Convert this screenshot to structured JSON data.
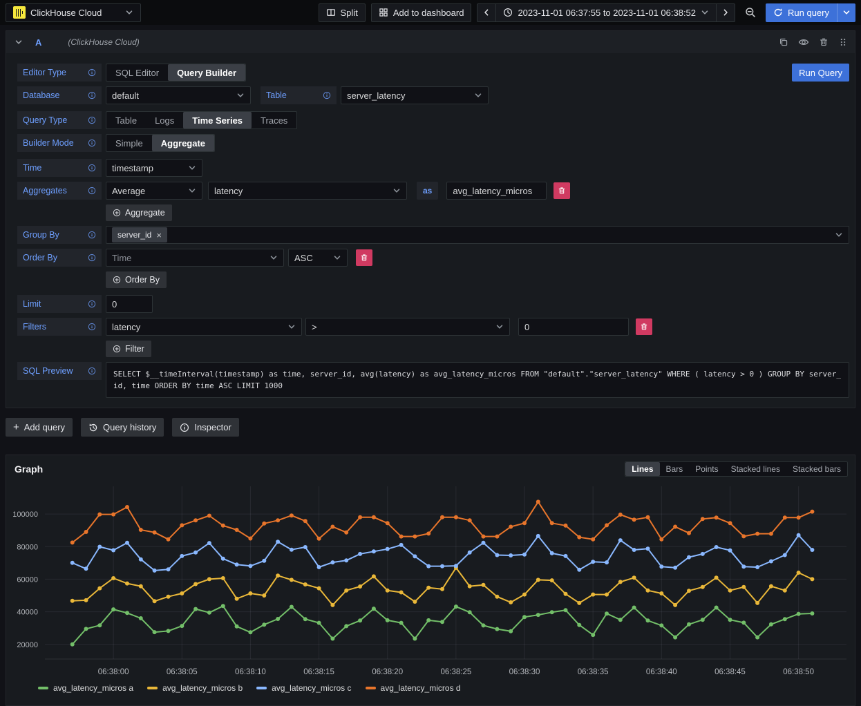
{
  "icons": {
    "plus": "+",
    "close": "×"
  },
  "topbar": {
    "datasource_name": "ClickHouse Cloud",
    "split": "Split",
    "add_to_dashboard": "Add to dashboard",
    "time_range": "2023-11-01 06:37:55 to 2023-11-01 06:38:52",
    "run_query": "Run query"
  },
  "panel": {
    "ref_id": "A",
    "datasource_hint": "(ClickHouse Cloud)",
    "run_query": "Run Query",
    "editor_type": {
      "label": "Editor Type",
      "options": [
        "SQL Editor",
        "Query Builder"
      ],
      "selected": "Query Builder"
    },
    "database": {
      "label": "Database",
      "value": "default"
    },
    "table": {
      "label": "Table",
      "value": "server_latency"
    },
    "query_type": {
      "label": "Query Type",
      "options": [
        "Table",
        "Logs",
        "Time Series",
        "Traces"
      ],
      "selected": "Time Series"
    },
    "builder_mode": {
      "label": "Builder Mode",
      "options": [
        "Simple",
        "Aggregate"
      ],
      "selected": "Aggregate"
    },
    "time": {
      "label": "Time",
      "value": "timestamp"
    },
    "aggregates": {
      "label": "Aggregates",
      "function": "Average",
      "column": "latency",
      "as_label": "as",
      "alias": "avg_latency_micros",
      "add_button": "Aggregate"
    },
    "group_by": {
      "label": "Group By",
      "tags": [
        "server_id"
      ]
    },
    "order_by": {
      "label": "Order By",
      "field": "Time",
      "direction": "ASC",
      "add_button": "Order By"
    },
    "limit": {
      "label": "Limit",
      "value": "0"
    },
    "filters": {
      "label": "Filters",
      "column": "latency",
      "operator": ">",
      "value": "0",
      "add_button": "Filter"
    },
    "sql_preview": {
      "label": "SQL Preview",
      "sql": "SELECT $__timeInterval(timestamp) as time, server_id, avg(latency) as avg_latency_micros FROM \"default\".\"server_latency\" WHERE ( latency > 0 ) GROUP BY server_id, time ORDER BY time ASC LIMIT 1000"
    }
  },
  "footer_buttons": {
    "add_query": "Add query",
    "query_history": "Query history",
    "inspector": "Inspector"
  },
  "graph": {
    "title": "Graph",
    "view_modes": [
      "Lines",
      "Bars",
      "Points",
      "Stacked lines",
      "Stacked bars"
    ],
    "active_mode": "Lines"
  },
  "colors": {
    "accent_blue": "#3D71D9",
    "label_blue": "#6E9FFF",
    "destructive_red": "#D03A61",
    "clickhouse_yellow": "#F5E73D",
    "panel_bg": "#181B1F",
    "page_bg": "#111217",
    "series_green": "#73BF69",
    "series_yellow": "#EAB839",
    "series_blue": "#8AB8FF",
    "series_orange": "#E8752B"
  },
  "chart_data": {
    "type": "line",
    "title": "Graph",
    "xlabel": "",
    "ylabel": "",
    "grid": true,
    "legend_position": "bottom",
    "ylim": [
      11000,
      117000
    ],
    "y_ticks": [
      20000,
      40000,
      60000,
      80000,
      100000
    ],
    "x_tick_labels": [
      "06:38:00",
      "06:38:05",
      "06:38:10",
      "06:38:15",
      "06:38:20",
      "06:38:25",
      "06:38:30",
      "06:38:35",
      "06:38:40",
      "06:38:45",
      "06:38:50"
    ],
    "x_times": [
      "06:37:57",
      "06:37:58",
      "06:37:59",
      "06:38:00",
      "06:38:01",
      "06:38:02",
      "06:38:03",
      "06:38:04",
      "06:38:05",
      "06:38:06",
      "06:38:07",
      "06:38:08",
      "06:38:09",
      "06:38:10",
      "06:38:11",
      "06:38:12",
      "06:38:13",
      "06:38:14",
      "06:38:15",
      "06:38:16",
      "06:38:17",
      "06:38:18",
      "06:38:19",
      "06:38:20",
      "06:38:21",
      "06:38:22",
      "06:38:23",
      "06:38:24",
      "06:38:25",
      "06:38:26",
      "06:38:27",
      "06:38:28",
      "06:38:29",
      "06:38:30",
      "06:38:31",
      "06:38:32",
      "06:38:33",
      "06:38:34",
      "06:38:35",
      "06:38:36",
      "06:38:37",
      "06:38:38",
      "06:38:39",
      "06:38:40",
      "06:38:41",
      "06:38:42",
      "06:38:43",
      "06:38:44",
      "06:38:45",
      "06:38:46",
      "06:38:47",
      "06:38:48",
      "06:38:49",
      "06:38:50",
      "06:38:51"
    ],
    "series": [
      {
        "name": "avg_latency_micros a",
        "color": "#73BF69",
        "values": [
          20000,
          29500,
          31700,
          41500,
          39300,
          36000,
          27500,
          28200,
          31300,
          41700,
          39500,
          43500,
          31000,
          27400,
          32100,
          35600,
          43000,
          35500,
          33200,
          23500,
          31200,
          34600,
          41900,
          34800,
          33200,
          23500,
          34800,
          33800,
          43200,
          39700,
          31600,
          29400,
          28100,
          36800,
          38100,
          39700,
          41000,
          31900,
          25800,
          38900,
          35100,
          42600,
          34600,
          31600,
          24300,
          32300,
          35100,
          42600,
          35100,
          33300,
          24300,
          32300,
          35500,
          38700,
          39000
        ]
      },
      {
        "name": "avg_latency_micros b",
        "color": "#EAB839",
        "values": [
          46700,
          47100,
          54400,
          60600,
          57400,
          55700,
          46500,
          49300,
          51300,
          57000,
          60000,
          60600,
          48000,
          51300,
          50000,
          62200,
          59600,
          56800,
          54400,
          44100,
          53100,
          55500,
          61700,
          53100,
          51900,
          46200,
          54800,
          53900,
          67000,
          55700,
          56500,
          49300,
          45800,
          50600,
          59600,
          59300,
          51000,
          45400,
          50600,
          50600,
          58300,
          60900,
          53100,
          51300,
          44100,
          52900,
          55200,
          60900,
          53100,
          55200,
          45400,
          55700,
          53100,
          64000,
          60000
        ]
      },
      {
        "name": "avg_latency_micros c",
        "color": "#8AB8FF",
        "values": [
          70000,
          66400,
          79900,
          77800,
          82300,
          72200,
          65300,
          66000,
          74200,
          76400,
          82200,
          72600,
          69000,
          68100,
          71300,
          83000,
          78100,
          79700,
          67400,
          70300,
          71500,
          75500,
          77000,
          78500,
          81000,
          74000,
          68000,
          68000,
          68200,
          76400,
          82300,
          74800,
          74600,
          75100,
          86500,
          75900,
          74200,
          65800,
          70700,
          70300,
          83900,
          78000,
          78700,
          67700,
          67100,
          73500,
          75500,
          79700,
          77700,
          67700,
          67400,
          71000,
          74800,
          87000,
          78000
        ]
      },
      {
        "name": "avg_latency_micros d",
        "color": "#E8752B",
        "values": [
          82500,
          89000,
          99800,
          99800,
          104300,
          90300,
          88700,
          84500,
          93100,
          96100,
          99000,
          92900,
          90300,
          85000,
          94200,
          96100,
          99100,
          95700,
          84900,
          92200,
          88700,
          98000,
          98000,
          94400,
          86200,
          86200,
          88000,
          98000,
          98000,
          96100,
          86200,
          86200,
          92200,
          94400,
          107500,
          94400,
          92900,
          85800,
          84500,
          93100,
          99600,
          96500,
          98000,
          84500,
          92200,
          88300,
          97000,
          97800,
          94400,
          86300,
          87900,
          87900,
          97800,
          97800,
          101500
        ]
      }
    ]
  }
}
